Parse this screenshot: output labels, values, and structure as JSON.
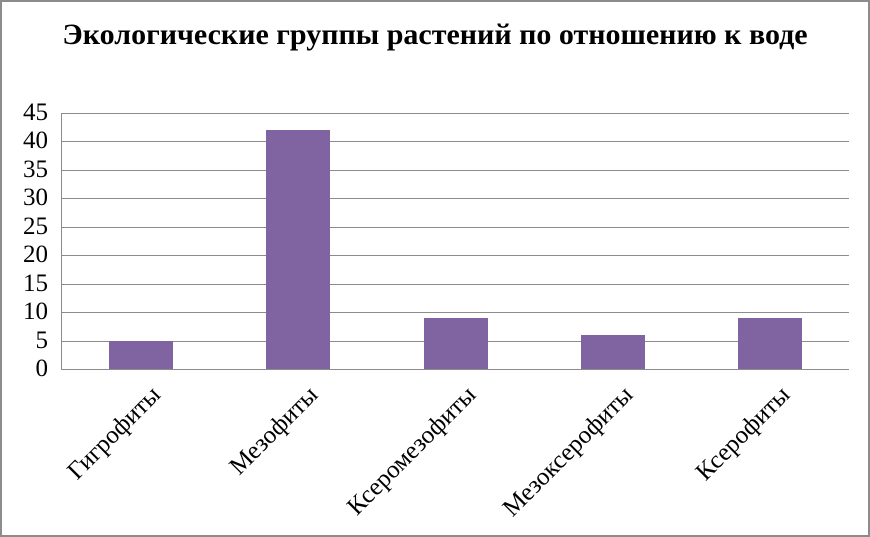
{
  "chart_data": {
    "type": "bar",
    "title": "Экологические группы растений по отношению к воде",
    "categories": [
      "Гигрофиты",
      "Мезофиты",
      "Ксеромезофиты",
      "Мезоксерофиты",
      "Ксерофиты"
    ],
    "values": [
      5,
      42,
      9,
      6,
      9
    ],
    "xlabel": "",
    "ylabel": "",
    "ylim": [
      0,
      45
    ],
    "ytick_step": 5,
    "yticks": [
      0,
      5,
      10,
      15,
      20,
      25,
      30,
      35,
      40,
      45
    ],
    "grid": true,
    "legend": "none",
    "bar_color": "#8064A2",
    "gridline_color": "#8c8c8c",
    "border_color": "#8c8c8c",
    "background_color": "#ffffff",
    "text_color": "#000000"
  }
}
